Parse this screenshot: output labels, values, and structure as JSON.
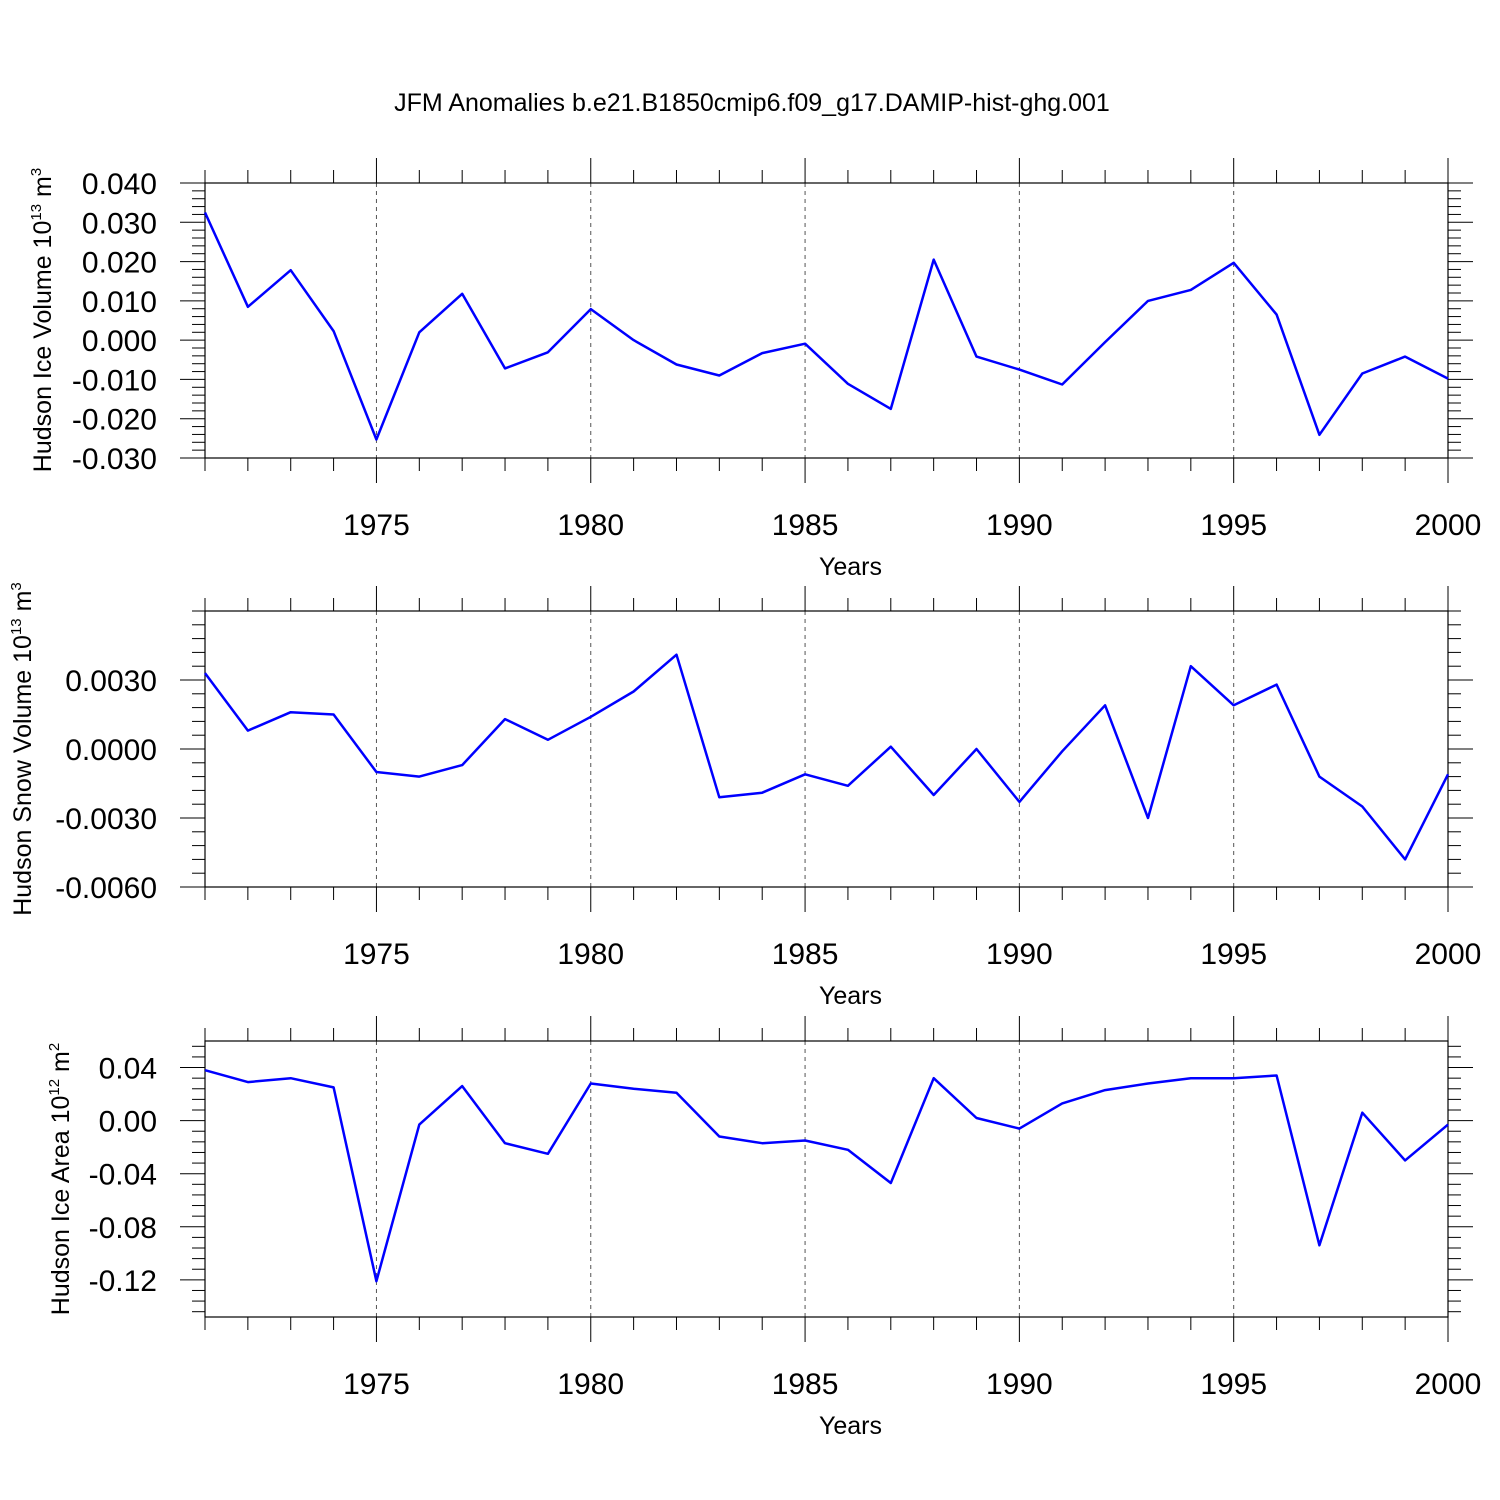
{
  "figure": {
    "title": "JFM Anomalies b.e21.B1850cmip6.f09_g17.DAMIP-hist-ghg.001",
    "line_color": "#0000ff"
  },
  "chart_data": [
    {
      "type": "line",
      "title": "",
      "xlabel": "Years",
      "ylabel": "Hudson Ice Volume 10",
      "ylabel_exponent": "13",
      "ylabel_unit": " m",
      "ylabel_unit_exponent": "3",
      "xlim": [
        1971,
        2000
      ],
      "ylim": [
        -0.03,
        0.04
      ],
      "xticks": [
        1975,
        1980,
        1985,
        1990,
        1995,
        2000
      ],
      "yticks": [
        -0.03,
        -0.02,
        -0.01,
        0.0,
        0.01,
        0.02,
        0.03,
        0.04
      ],
      "ytick_labels": [
        "-0.030",
        "-0.020",
        "-0.010",
        "0.000",
        "0.010",
        "0.020",
        "0.030",
        "0.040"
      ],
      "grid": "dashed vertical at major x ticks",
      "series": [
        {
          "name": "Hudson Ice Volume",
          "x": [
            1971,
            1972,
            1973,
            1974,
            1975,
            1976,
            1977,
            1978,
            1979,
            1980,
            1981,
            1982,
            1983,
            1984,
            1985,
            1986,
            1987,
            1988,
            1989,
            1990,
            1991,
            1992,
            1993,
            1994,
            1995,
            1996,
            1997,
            1998,
            1999,
            2000
          ],
          "values": [
            0.0325,
            0.0085,
            0.0178,
            0.0023,
            -0.0253,
            0.002,
            0.0118,
            -0.0072,
            -0.0031,
            0.0079,
            0.0,
            -0.0062,
            -0.009,
            -0.0033,
            -0.0009,
            -0.0111,
            -0.0175,
            0.0205,
            -0.0042,
            -0.0075,
            -0.0113,
            -0.0005,
            0.01,
            0.0128,
            0.0197,
            0.0065,
            -0.0241,
            -0.0085,
            -0.0042,
            -0.0098
          ]
        }
      ]
    },
    {
      "type": "line",
      "title": "",
      "xlabel": "Years",
      "ylabel": "Hudson Snow Volume 10",
      "ylabel_exponent": "13",
      "ylabel_unit": " m",
      "ylabel_unit_exponent": "3",
      "xlim": [
        1971,
        2000
      ],
      "ylim": [
        -0.006,
        0.006
      ],
      "xticks": [
        1975,
        1980,
        1985,
        1990,
        1995,
        2000
      ],
      "yticks": [
        -0.006,
        -0.003,
        0.0,
        0.003
      ],
      "ytick_labels": [
        "-0.0060",
        "-0.0030",
        "0.0000",
        "0.0030"
      ],
      "grid": "dashed vertical at major x ticks",
      "series": [
        {
          "name": "Hudson Snow Volume",
          "x": [
            1971,
            1972,
            1973,
            1974,
            1975,
            1976,
            1977,
            1978,
            1979,
            1980,
            1981,
            1982,
            1983,
            1984,
            1985,
            1986,
            1987,
            1988,
            1989,
            1990,
            1991,
            1992,
            1993,
            1994,
            1995,
            1996,
            1997,
            1998,
            1999,
            2000
          ],
          "values": [
            0.0033,
            0.0008,
            0.0016,
            0.0015,
            -0.001,
            -0.0012,
            -0.0007,
            0.0013,
            0.0004,
            0.0014,
            0.0025,
            0.0041,
            -0.0021,
            -0.0019,
            -0.0011,
            -0.0016,
            0.0001,
            -0.002,
            0.0,
            -0.0023,
            -0.0001,
            0.0019,
            -0.003,
            0.0036,
            0.0019,
            0.0028,
            -0.0012,
            -0.0025,
            -0.0048,
            -0.0011
          ]
        }
      ]
    },
    {
      "type": "line",
      "title": "",
      "xlabel": "Years",
      "ylabel": "Hudson Ice Area 10",
      "ylabel_exponent": "12",
      "ylabel_unit": " m",
      "ylabel_unit_exponent": "2",
      "xlim": [
        1971,
        2000
      ],
      "ylim": [
        -0.148,
        0.06
      ],
      "xticks": [
        1975,
        1980,
        1985,
        1990,
        1995,
        2000
      ],
      "yticks": [
        -0.12,
        -0.08,
        -0.04,
        0.0,
        0.04
      ],
      "ytick_labels": [
        "-0.12",
        "-0.08",
        "-0.04",
        "0.00",
        "0.04"
      ],
      "grid": "dashed vertical at major x ticks",
      "series": [
        {
          "name": "Hudson Ice Area",
          "x": [
            1971,
            1972,
            1973,
            1974,
            1975,
            1976,
            1977,
            1978,
            1979,
            1980,
            1981,
            1982,
            1983,
            1984,
            1985,
            1986,
            1987,
            1988,
            1989,
            1990,
            1991,
            1992,
            1993,
            1994,
            1995,
            1996,
            1997,
            1998,
            1999,
            2000
          ],
          "values": [
            0.038,
            0.029,
            0.032,
            0.025,
            -0.121,
            -0.003,
            0.026,
            -0.017,
            -0.025,
            0.028,
            0.024,
            0.021,
            -0.012,
            -0.017,
            -0.015,
            -0.022,
            -0.047,
            0.032,
            0.002,
            -0.006,
            0.013,
            0.023,
            0.028,
            0.032,
            0.032,
            0.034,
            -0.094,
            0.006,
            -0.03,
            -0.003
          ]
        }
      ]
    }
  ]
}
